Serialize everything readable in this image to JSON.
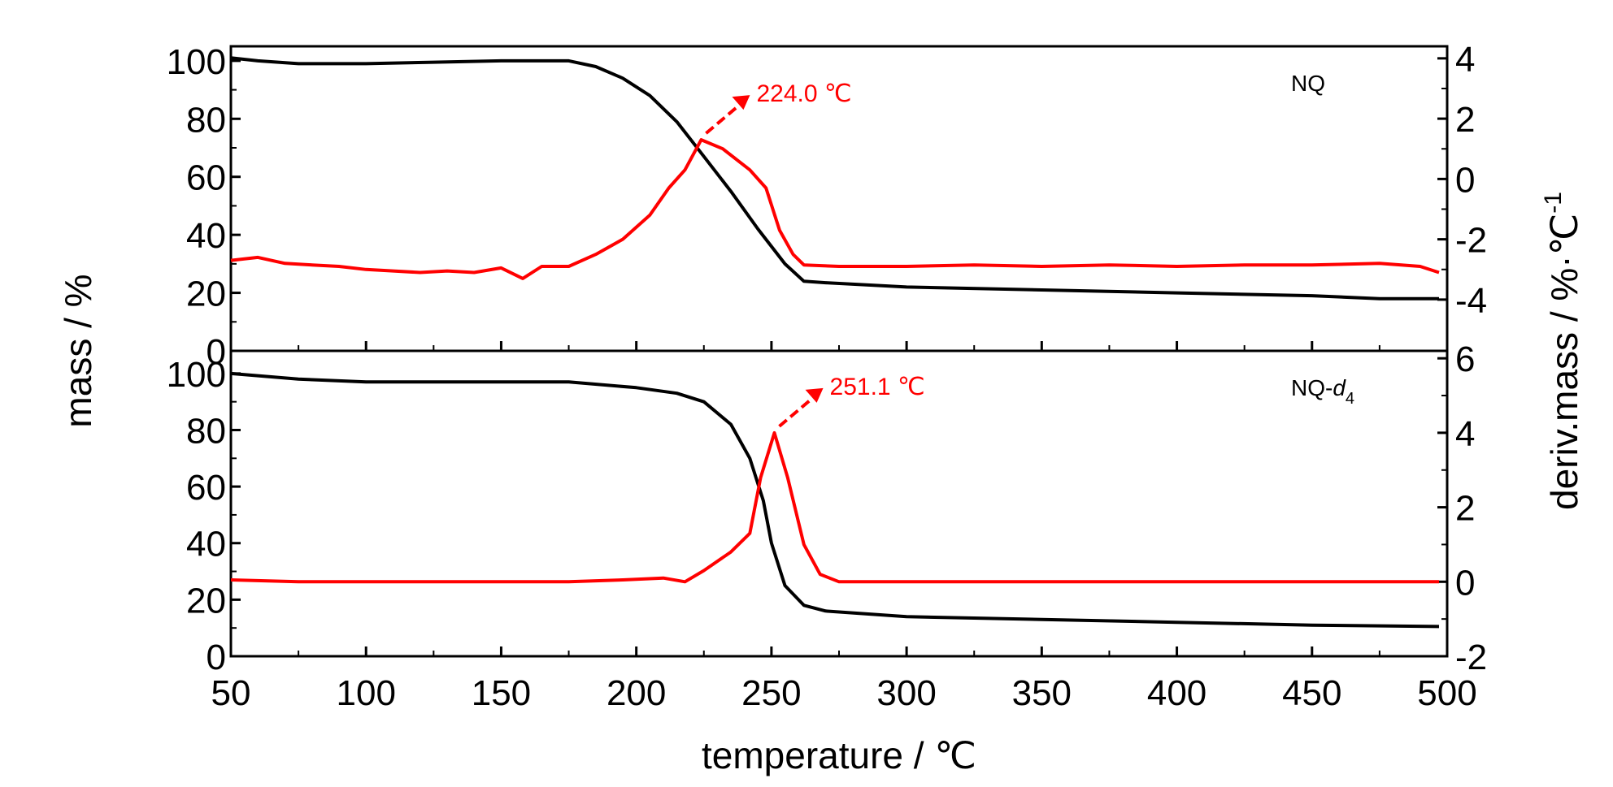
{
  "chart_data": {
    "type": "line",
    "colors": {
      "mass": "#000000",
      "deriv": "#ff0000"
    },
    "x_axis": {
      "label": "temperature / ℃",
      "range": [
        50,
        500
      ],
      "ticks": [
        50,
        100,
        150,
        200,
        250,
        300,
        350,
        400,
        450,
        500
      ],
      "tick_labels": [
        "50",
        "100",
        "150",
        "200",
        "250",
        "300",
        "350",
        "400",
        "450",
        "500"
      ]
    },
    "left_axis_label": "mass / %",
    "right_axis_label": "deriv.mass / %·℃",
    "right_axis_label_sup": "-1",
    "panels": [
      {
        "name": "NQ",
        "label": "NQ",
        "left_axis": {
          "range": [
            0,
            105
          ],
          "ticks": [
            0,
            20,
            40,
            60,
            80,
            100
          ],
          "tick_labels": [
            "0",
            "20",
            "40",
            "60",
            "80",
            "100"
          ]
        },
        "right_axis": {
          "range": [
            -5.7,
            4.4
          ],
          "ticks": [
            -4,
            -2,
            0,
            2,
            4
          ],
          "tick_labels": [
            "-4",
            "-2",
            "0",
            "2",
            "4"
          ]
        },
        "annotation": {
          "text": "224.0 ℃",
          "x": 224.0,
          "y": 1.3
        },
        "series": [
          {
            "axis": "left",
            "color": "#000000",
            "points": [
              [
                50,
                101
              ],
              [
                60,
                100
              ],
              [
                75,
                99
              ],
              [
                100,
                99
              ],
              [
                125,
                99.5
              ],
              [
                150,
                100
              ],
              [
                175,
                100
              ],
              [
                185,
                98
              ],
              [
                195,
                94
              ],
              [
                205,
                88
              ],
              [
                215,
                79
              ],
              [
                225,
                67
              ],
              [
                235,
                55
              ],
              [
                245,
                42
              ],
              [
                255,
                30
              ],
              [
                262,
                24
              ],
              [
                270,
                23.5
              ],
              [
                300,
                22
              ],
              [
                350,
                21
              ],
              [
                400,
                20
              ],
              [
                450,
                19
              ],
              [
                475,
                18
              ],
              [
                497,
                18
              ]
            ]
          },
          {
            "axis": "right",
            "color": "#ff0000",
            "points": [
              [
                50,
                -2.7
              ],
              [
                60,
                -2.6
              ],
              [
                70,
                -2.8
              ],
              [
                80,
                -2.85
              ],
              [
                90,
                -2.9
              ],
              [
                100,
                -3.0
              ],
              [
                110,
                -3.05
              ],
              [
                120,
                -3.1
              ],
              [
                130,
                -3.05
              ],
              [
                140,
                -3.1
              ],
              [
                150,
                -2.95
              ],
              [
                158,
                -3.3
              ],
              [
                165,
                -2.9
              ],
              [
                175,
                -2.9
              ],
              [
                185,
                -2.5
              ],
              [
                195,
                -2.0
              ],
              [
                205,
                -1.2
              ],
              [
                212,
                -0.3
              ],
              [
                218,
                0.3
              ],
              [
                224,
                1.3
              ],
              [
                232,
                1.0
              ],
              [
                242,
                0.3
              ],
              [
                248,
                -0.3
              ],
              [
                253,
                -1.7
              ],
              [
                258,
                -2.5
              ],
              [
                262,
                -2.85
              ],
              [
                275,
                -2.9
              ],
              [
                300,
                -2.9
              ],
              [
                325,
                -2.85
              ],
              [
                350,
                -2.9
              ],
              [
                375,
                -2.85
              ],
              [
                400,
                -2.9
              ],
              [
                425,
                -2.85
              ],
              [
                450,
                -2.85
              ],
              [
                475,
                -2.8
              ],
              [
                490,
                -2.9
              ],
              [
                497,
                -3.1
              ]
            ]
          }
        ]
      },
      {
        "name": "NQ-d4",
        "label": "NQ-",
        "label_italic": "d",
        "label_sub": "4",
        "left_axis": {
          "range": [
            0,
            108
          ],
          "ticks": [
            0,
            20,
            40,
            60,
            80,
            100
          ],
          "tick_labels": [
            "0",
            "20",
            "40",
            "60",
            "80",
            "100"
          ]
        },
        "right_axis": {
          "range": [
            -2,
            6.2
          ],
          "ticks": [
            -2,
            0,
            2,
            4,
            6
          ],
          "tick_labels": [
            "-2",
            "0",
            "2",
            "4",
            "6"
          ]
        },
        "annotation": {
          "text": "251.1 ℃",
          "x": 251.1,
          "y": 4.0
        },
        "series": [
          {
            "axis": "left",
            "color": "#000000",
            "points": [
              [
                50,
                100
              ],
              [
                75,
                98
              ],
              [
                100,
                97
              ],
              [
                150,
                97
              ],
              [
                175,
                97
              ],
              [
                200,
                95
              ],
              [
                215,
                93
              ],
              [
                225,
                90
              ],
              [
                235,
                82
              ],
              [
                242,
                70
              ],
              [
                247,
                55
              ],
              [
                250,
                40
              ],
              [
                255,
                25
              ],
              [
                262,
                18
              ],
              [
                270,
                16
              ],
              [
                300,
                14
              ],
              [
                350,
                13
              ],
              [
                400,
                12
              ],
              [
                450,
                11
              ],
              [
                497,
                10.5
              ]
            ]
          },
          {
            "axis": "right",
            "color": "#ff0000",
            "points": [
              [
                50,
                0.05
              ],
              [
                75,
                0.0
              ],
              [
                100,
                0.0
              ],
              [
                150,
                0.0
              ],
              [
                175,
                0.0
              ],
              [
                195,
                0.05
              ],
              [
                210,
                0.1
              ],
              [
                218,
                0.0
              ],
              [
                225,
                0.3
              ],
              [
                235,
                0.8
              ],
              [
                242,
                1.3
              ],
              [
                246,
                2.8
              ],
              [
                251.1,
                4.0
              ],
              [
                256,
                2.8
              ],
              [
                262,
                1.0
              ],
              [
                268,
                0.2
              ],
              [
                275,
                0.0
              ],
              [
                300,
                0.0
              ],
              [
                350,
                0.0
              ],
              [
                400,
                0.0
              ],
              [
                450,
                0.0
              ],
              [
                497,
                0.0
              ]
            ]
          }
        ]
      }
    ]
  }
}
